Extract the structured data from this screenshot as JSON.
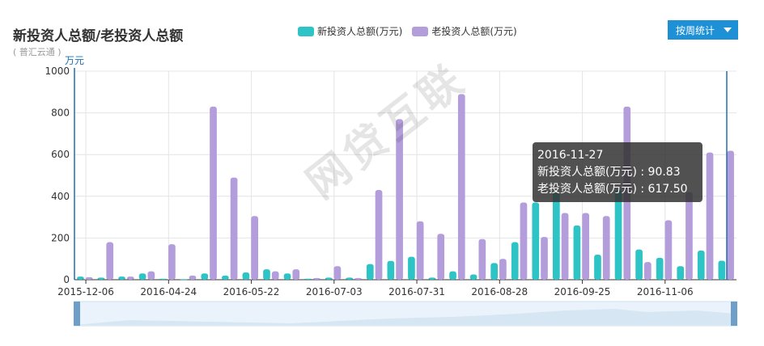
{
  "header": {
    "title": "新投资人总额/老投资人总额",
    "subtitle": "( 普汇云通 )"
  },
  "toolbar": {
    "period_button": "按周统计"
  },
  "watermark": "网贷互联",
  "colors": {
    "new": "#2ec4c6",
    "old": "#b39ddb",
    "accent": "#1e90d6"
  },
  "tooltip": {
    "date": "2016-11-27",
    "line1": "新投资人总额(万元) : 90.83",
    "line2": "老投资人总额(万元) : 617.50"
  },
  "chart_data": {
    "type": "bar",
    "ylabel": "万元",
    "ylim": [
      0,
      1000
    ],
    "yticks": [
      0,
      200,
      400,
      600,
      800,
      1000
    ],
    "legend_position": "top-center",
    "grid": true,
    "x_tick_labels": [
      "2015-12-06",
      "2016-04-24",
      "2016-05-22",
      "2016-07-03",
      "2016-07-31",
      "2016-08-28",
      "2016-09-25",
      "2016-11-06"
    ],
    "series": [
      {
        "name": "新投资人总额(万元)",
        "values": [
          15,
          10,
          15,
          30,
          5,
          3,
          30,
          20,
          35,
          50,
          30,
          5,
          10,
          10,
          75,
          90,
          110,
          10,
          40,
          25,
          80,
          180,
          370,
          420,
          260,
          120,
          430,
          145,
          105,
          65,
          140,
          91
        ]
      },
      {
        "name": "老投资人总额(万元)",
        "values": [
          12,
          180,
          15,
          40,
          170,
          20,
          830,
          490,
          305,
          40,
          50,
          8,
          65,
          8,
          430,
          770,
          280,
          220,
          890,
          195,
          100,
          370,
          205,
          320,
          320,
          305,
          830,
          85,
          285,
          420,
          610,
          618
        ]
      }
    ]
  }
}
